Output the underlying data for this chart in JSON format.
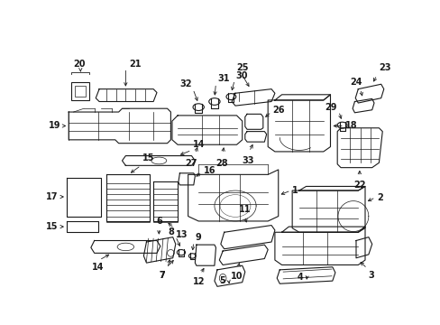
{
  "bg_color": "#ffffff",
  "fig_width": 4.89,
  "fig_height": 3.6,
  "dpi": 100,
  "ec": "#1a1a1a",
  "lw_main": 0.8,
  "lw_detail": 0.5,
  "fs": 7.0
}
